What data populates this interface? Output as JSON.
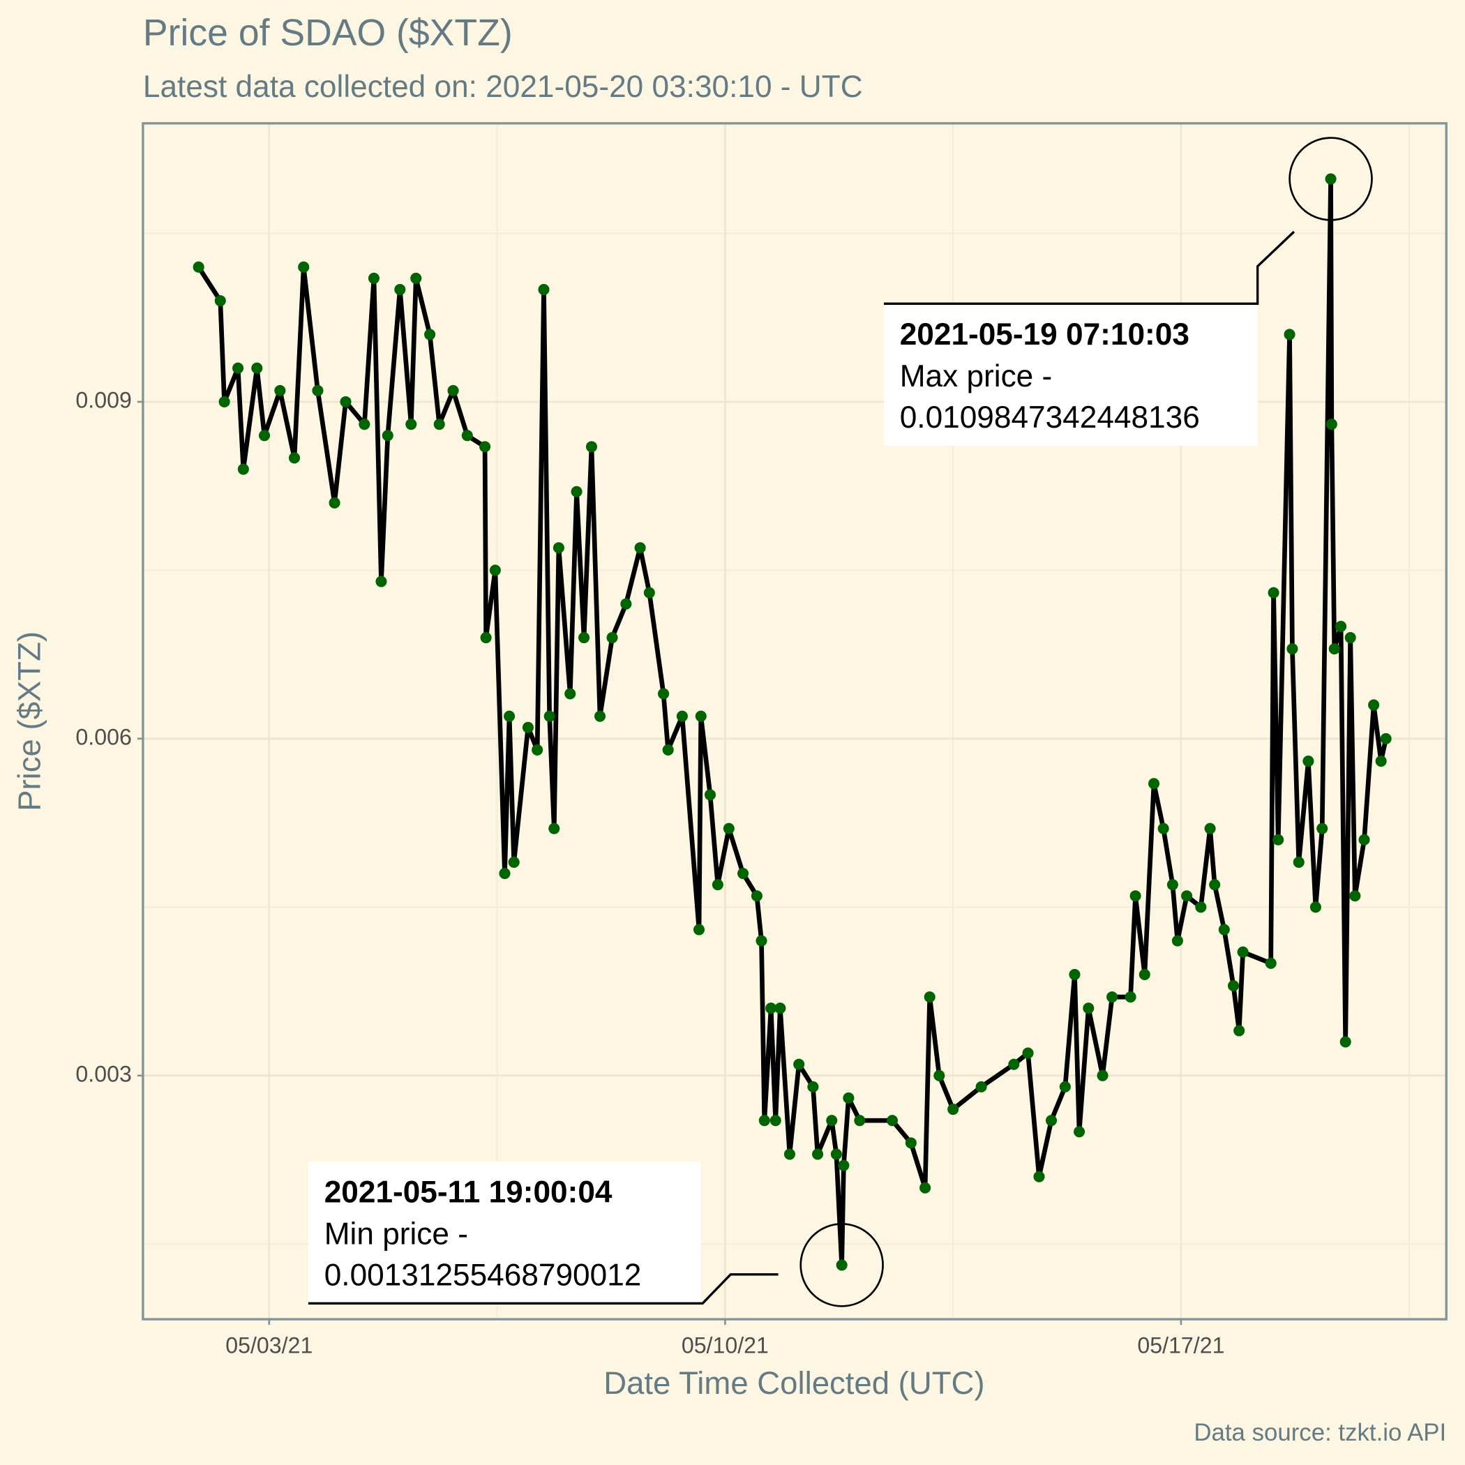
{
  "chart_data": {
    "type": "line",
    "title": "Price of SDAO ($XTZ)",
    "subtitle": "Latest data collected on: 2021-05-20 03:30:10  - UTC",
    "x_label": "Date Time Collected (UTC)",
    "y_label": "Price ($XTZ)",
    "caption": "Data source: tzkt.io API",
    "x": [
      "2021-05-01 22:00",
      "2021-05-02 06:00",
      "2021-05-02 07:30",
      "2021-05-02 12:30",
      "2021-05-02 14:30",
      "2021-05-02 19:30",
      "2021-05-02 22:15",
      "2021-05-03 04:00",
      "2021-05-03 09:18",
      "2021-05-03 12:42",
      "2021-05-03 17:54",
      "2021-05-04 00:06",
      "2021-05-04 04:12",
      "2021-05-04 11:06",
      "2021-05-04 14:36",
      "2021-05-04 17:18",
      "2021-05-04 19:42",
      "2021-05-05 00:12",
      "2021-05-05 04:18",
      "2021-05-05 06:06",
      "2021-05-05 11:12",
      "2021-05-05 14:42",
      "2021-05-05 19:48",
      "2021-05-06 01:00",
      "2021-05-06 07:30",
      "2021-05-06 07:54",
      "2021-05-06 11:18",
      "2021-05-06 14:48",
      "2021-05-06 16:30",
      "2021-05-06 18:12",
      "2021-05-06 23:24",
      "2021-05-07 02:48",
      "2021-05-07 05:12",
      "2021-05-07 07:18",
      "2021-05-07 09:00",
      "2021-05-07 10:42",
      "2021-05-07 14:54",
      "2021-05-07 17:18",
      "2021-05-07 20:00",
      "2021-05-07 22:48",
      "2021-05-08 01:54",
      "2021-05-08 06:24",
      "2021-05-08 11:30",
      "2021-05-08 16:42",
      "2021-05-08 20:06",
      "2021-05-09 01:18",
      "2021-05-09 03:00",
      "2021-05-09 08:12",
      "2021-05-09 14:24",
      "2021-05-09 15:06",
      "2021-05-09 18:30",
      "2021-05-09 21:18",
      "2021-05-10 01:24",
      "2021-05-10 06:36",
      "2021-05-10 11:42",
      "2021-05-10 13:24",
      "2021-05-10 14:30",
      "2021-05-10 16:54",
      "2021-05-10 18:36",
      "2021-05-10 20:18",
      "2021-05-10 23:48",
      "2021-05-11 03:12",
      "2021-05-11 08:24",
      "2021-05-11 10:06",
      "2021-05-11 15:18",
      "2021-05-11 17:00",
      "2021-05-11 19:00:04",
      "2021-05-11 19:42",
      "2021-05-11 21:30",
      "2021-05-12 01:36",
      "2021-05-12 13:36",
      "2021-05-12 20:30",
      "2021-05-13 01:42",
      "2021-05-13 03:24",
      "2021-05-13 06:54",
      "2021-05-13 12:00",
      "2021-05-13 22:24",
      "2021-05-14 10:24",
      "2021-05-14 15:36",
      "2021-05-14 19:42",
      "2021-05-15 00:12",
      "2021-05-15 05:18",
      "2021-05-15 08:48",
      "2021-05-15 10:30",
      "2021-05-15 13:54",
      "2021-05-15 19:06",
      "2021-05-15 22:36",
      "2021-05-16 05:24",
      "2021-05-16 07:12",
      "2021-05-16 10:36",
      "2021-05-16 14:00",
      "2021-05-16 17:30",
      "2021-05-16 20:54",
      "2021-05-16 22:42",
      "2021-05-17 02:06",
      "2021-05-17 07:18",
      "2021-05-17 10:42",
      "2021-05-17 12:24",
      "2021-05-17 15:54",
      "2021-05-17 19:18",
      "2021-05-17 21:24",
      "2021-05-17 22:48",
      "2021-05-18 09:06",
      "2021-05-18 10:06",
      "2021-05-18 11:48",
      "2021-05-18 16:00",
      "2021-05-18 17:00",
      "2021-05-18 19:24",
      "2021-05-18 22:54",
      "2021-05-19 01:36",
      "2021-05-19 04:00",
      "2021-05-19 07:10:03",
      "2021-05-19 07:30",
      "2021-05-19 08:30",
      "2021-05-19 10:54",
      "2021-05-19 12:36",
      "2021-05-19 14:24",
      "2021-05-19 16:06",
      "2021-05-19 19:30",
      "2021-05-19 23:00",
      "2021-05-20 01:42",
      "2021-05-20 03:30:10"
    ],
    "series": [
      {
        "color": "#006400",
        "line_color": "#000000",
        "values": [
          0.0102,
          0.0099,
          0.009,
          0.0093,
          0.0084,
          0.0093,
          0.0087,
          0.0091,
          0.0085,
          0.0102,
          0.0091,
          0.0081,
          0.009,
          0.0088,
          0.0101,
          0.0074,
          0.0087,
          0.01,
          0.0088,
          0.0101,
          0.0096,
          0.0088,
          0.0091,
          0.0087,
          0.0086,
          0.0069,
          0.0075,
          0.0048,
          0.0062,
          0.0049,
          0.0061,
          0.0059,
          0.01,
          0.0062,
          0.0052,
          0.0077,
          0.0064,
          0.0082,
          0.0069,
          0.0086,
          0.0062,
          0.0069,
          0.0072,
          0.0077,
          0.0073,
          0.0064,
          0.0059,
          0.0062,
          0.0043,
          0.0062,
          0.0055,
          0.0047,
          0.0052,
          0.0048,
          0.0046,
          0.0042,
          0.0026,
          0.0036,
          0.0026,
          0.0036,
          0.0023,
          0.0031,
          0.0029,
          0.0023,
          0.0026,
          0.0023,
          0.00131255468790012,
          0.0022,
          0.0028,
          0.0026,
          0.0026,
          0.0024,
          0.002,
          0.0037,
          0.003,
          0.0027,
          0.0029,
          0.0031,
          0.0032,
          0.0021,
          0.0026,
          0.0029,
          0.0039,
          0.0025,
          0.0036,
          0.003,
          0.0037,
          0.0037,
          0.0046,
          0.0039,
          0.0056,
          0.0052,
          0.0047,
          0.0042,
          0.0046,
          0.0045,
          0.0052,
          0.0047,
          0.0043,
          0.0038,
          0.0034,
          0.0041,
          0.004,
          0.0073,
          0.0051,
          0.0096,
          0.0068,
          0.0049,
          0.0058,
          0.0045,
          0.0052,
          0.0109847342448136,
          0.0088,
          0.0068,
          0.007,
          0.0033,
          0.0069,
          0.0046,
          0.0051,
          0.0063,
          0.0058,
          0.006
        ]
      }
    ],
    "xlim": [
      "2021-05-01 01:30",
      "2021-05-21 01:45"
    ],
    "xticks": [
      {
        "value": "2021-05-03",
        "label": "05/03/21"
      },
      {
        "value": "2021-05-10",
        "label": "05/10/21"
      },
      {
        "value": "2021-05-17",
        "label": "05/17/21"
      }
    ],
    "xminor": [
      "2021-05-06 12:00",
      "2021-05-13 12:00",
      "2021-05-20 12:00"
    ],
    "ylim": [
      0.00083,
      0.01148
    ],
    "yticks": [
      0.003,
      0.006,
      0.009
    ],
    "yminor": [
      0.0015,
      0.0045,
      0.0075,
      0.0105
    ],
    "grid": true,
    "annotations": [
      {
        "x": "2021-05-19 07:10:03",
        "title": "2021-05-19 07:10:03",
        "label": "Max price -",
        "value": 0.0109847342448136
      },
      {
        "x": "2021-05-11 19:00:04",
        "title": "2021-05-11 19:00:04",
        "label": "Min price -",
        "value": 0.00131255468790012
      }
    ]
  }
}
